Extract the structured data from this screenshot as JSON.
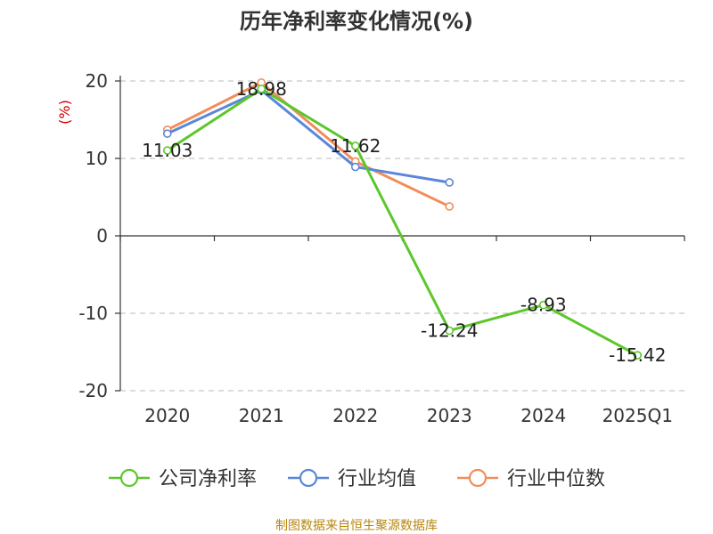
{
  "chart_data": {
    "type": "line",
    "title": "历年净利率变化情况(%)",
    "ylabel": "(%)",
    "categories": [
      "2020",
      "2021",
      "2022",
      "2023",
      "2024",
      "2025Q1"
    ],
    "yticks": [
      20,
      10,
      0,
      -10,
      -20
    ],
    "ylim": [
      -20,
      20
    ],
    "grid": true,
    "legend": "bottom",
    "series": [
      {
        "name": "公司净利率",
        "color": "#5cc72b",
        "values": [
          11.03,
          18.98,
          11.62,
          -12.24,
          -8.93,
          -15.42
        ],
        "labels": [
          "11.03",
          "18.98",
          "11.62",
          "-12.24",
          "-8.93",
          "-15.42"
        ]
      },
      {
        "name": "行业均值",
        "color": "#5b87d8",
        "values": [
          13.2,
          18.8,
          8.9,
          6.9,
          null,
          null
        ]
      },
      {
        "name": "行业中位数",
        "color": "#f28d5b",
        "values": [
          13.7,
          19.8,
          9.6,
          3.8,
          null,
          null
        ]
      }
    ]
  },
  "footer": {
    "source": "制图数据来自恒生聚源数据库"
  }
}
